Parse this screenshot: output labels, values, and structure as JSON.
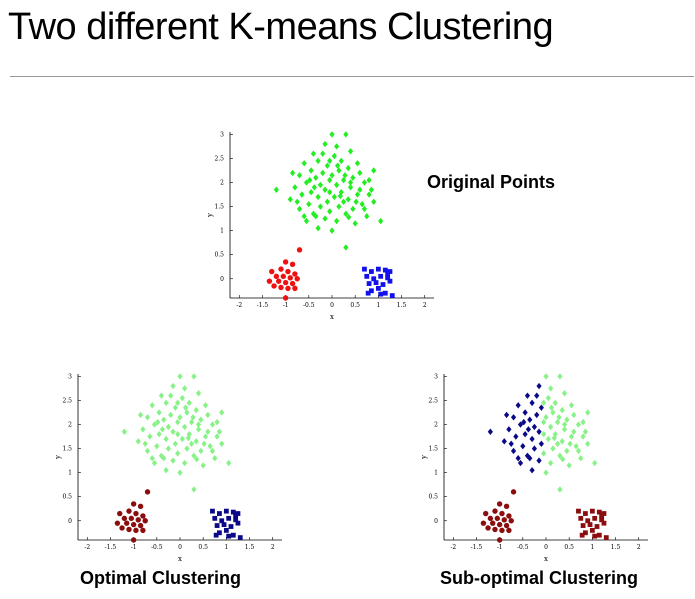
{
  "title": "Two different K-means Clustering",
  "colors": {
    "green": "#22ee22",
    "blue": "#1111ee",
    "red": "#ee1111",
    "light_green": "#88f288",
    "dark_blue": "#0a0a88",
    "dark_red": "#8b0d0d"
  },
  "chart_data": [
    {
      "type": "scatter",
      "caption": "Original Points",
      "xlabel": "x",
      "ylabel": "y",
      "xlim": [
        -2.2,
        2.2
      ],
      "ylim": [
        -0.4,
        3.05
      ],
      "xticks": [
        "-2",
        "-1.5",
        "-1",
        "-0.5",
        "0",
        "0.5",
        "1",
        "1.5",
        "2"
      ],
      "yticks": [
        "0",
        "0.5",
        "1",
        "1.5",
        "2",
        "2.5",
        "3"
      ],
      "grid": false,
      "series": [
        {
          "marker": "diamond",
          "color": "#22ee22",
          "cluster": "A"
        },
        {
          "marker": "square",
          "color": "#1111ee",
          "cluster": "B"
        },
        {
          "marker": "circle",
          "color": "#ee1111",
          "cluster": "C"
        }
      ]
    },
    {
      "type": "scatter",
      "caption": "Optimal Clustering",
      "xlabel": "x",
      "ylabel": "y",
      "xlim": [
        -2.2,
        2.2
      ],
      "ylim": [
        -0.4,
        3.05
      ],
      "xticks": [
        "-2",
        "-1.5",
        "-1",
        "-0.5",
        "0",
        "0.5",
        "1",
        "1.5",
        "2"
      ],
      "yticks": [
        "0",
        "0.5",
        "1",
        "1.5",
        "2",
        "2.5",
        "3"
      ],
      "grid": false,
      "series": [
        {
          "marker": "diamond",
          "color": "#88f288",
          "cluster": "A"
        },
        {
          "marker": "square",
          "color": "#0a0a88",
          "cluster": "B"
        },
        {
          "marker": "circle",
          "color": "#8b0d0d",
          "cluster": "C"
        }
      ]
    },
    {
      "type": "scatter",
      "caption": "Sub-optimal Clustering",
      "xlabel": "x",
      "ylabel": "y",
      "xlim": [
        -2.2,
        2.2
      ],
      "ylim": [
        -0.4,
        3.05
      ],
      "xticks": [
        "-2",
        "-1.5",
        "-1",
        "-0.5",
        "0",
        "0.5",
        "1",
        "1.5",
        "2"
      ],
      "yticks": [
        "0",
        "0.5",
        "1",
        "1.5",
        "2",
        "2.5",
        "3"
      ],
      "grid": false,
      "series": [
        {
          "marker": "diamond",
          "color": "#0a0a88",
          "cluster": "A",
          "x_max": -0.05
        },
        {
          "marker": "diamond",
          "color": "#88f288",
          "cluster": "A",
          "x_min": -0.05
        },
        {
          "marker": "square",
          "color": "#8b0d0d",
          "cluster": "B"
        },
        {
          "marker": "circle",
          "color": "#8b0d0d",
          "cluster": "C"
        }
      ]
    }
  ],
  "points": {
    "A": [
      [
        0.0,
        3.0
      ],
      [
        0.3,
        3.0
      ],
      [
        -0.15,
        2.8
      ],
      [
        0.1,
        2.75
      ],
      [
        -0.4,
        2.6
      ],
      [
        0.4,
        2.65
      ],
      [
        0.05,
        2.55
      ],
      [
        -0.3,
        2.45
      ],
      [
        0.2,
        2.45
      ],
      [
        -0.6,
        2.4
      ],
      [
        0.55,
        2.4
      ],
      [
        -0.1,
        2.35
      ],
      [
        0.35,
        2.3
      ],
      [
        -0.45,
        2.25
      ],
      [
        0.15,
        2.25
      ],
      [
        -0.2,
        2.2
      ],
      [
        0.6,
        2.2
      ],
      [
        -0.7,
        2.15
      ],
      [
        0.0,
        2.15
      ],
      [
        0.45,
        2.1
      ],
      [
        -0.35,
        2.1
      ],
      [
        0.25,
        2.05
      ],
      [
        -0.05,
        2.05
      ],
      [
        -0.55,
        2.0
      ],
      [
        0.7,
        2.0
      ],
      [
        0.1,
        1.95
      ],
      [
        -0.25,
        1.95
      ],
      [
        0.4,
        1.9
      ],
      [
        -0.8,
        1.9
      ],
      [
        0.85,
        1.85
      ],
      [
        -0.15,
        1.85
      ],
      [
        0.2,
        1.8
      ],
      [
        -0.45,
        1.8
      ],
      [
        0.55,
        1.75
      ],
      [
        -0.65,
        1.75
      ],
      [
        0.05,
        1.7
      ],
      [
        -0.3,
        1.7
      ],
      [
        0.35,
        1.65
      ],
      [
        -0.9,
        1.65
      ],
      [
        0.9,
        1.6
      ],
      [
        -0.1,
        1.6
      ],
      [
        0.65,
        1.55
      ],
      [
        -0.5,
        1.55
      ],
      [
        0.15,
        1.5
      ],
      [
        -0.25,
        1.5
      ],
      [
        0.45,
        1.45
      ],
      [
        -0.7,
        1.45
      ],
      [
        -0.05,
        1.4
      ],
      [
        0.3,
        1.35
      ],
      [
        -0.4,
        1.35
      ],
      [
        0.75,
        1.3
      ],
      [
        -0.15,
        1.25
      ],
      [
        0.1,
        1.2
      ],
      [
        -0.55,
        1.2
      ],
      [
        0.5,
        1.15
      ],
      [
        -0.3,
        1.05
      ],
      [
        0.0,
        1.0
      ],
      [
        1.05,
        1.2
      ],
      [
        0.8,
        1.75
      ],
      [
        -1.2,
        1.85
      ],
      [
        -0.35,
        1.3
      ],
      [
        0.25,
        1.6
      ],
      [
        0.6,
        1.85
      ],
      [
        -0.85,
        2.2
      ],
      [
        0.9,
        2.25
      ],
      [
        -0.6,
        1.3
      ],
      [
        0.4,
        2.0
      ],
      [
        -0.2,
        2.6
      ],
      [
        0.12,
        2.35
      ],
      [
        -0.05,
        1.8
      ],
      [
        0.7,
        1.45
      ],
      [
        -0.75,
        1.6
      ],
      [
        0.28,
        2.15
      ],
      [
        -0.38,
        1.9
      ],
      [
        0.52,
        1.6
      ],
      [
        -0.05,
        2.45
      ],
      [
        0.18,
        1.72
      ],
      [
        -0.48,
        2.05
      ],
      [
        0.36,
        1.28
      ],
      [
        0.8,
        2.05
      ],
      [
        0.3,
        0.65
      ]
    ],
    "B": [
      [
        0.7,
        0.2
      ],
      [
        0.85,
        0.15
      ],
      [
        1.0,
        0.2
      ],
      [
        1.15,
        0.18
      ],
      [
        1.25,
        0.15
      ],
      [
        0.75,
        0.05
      ],
      [
        0.9,
        0.0
      ],
      [
        1.05,
        0.05
      ],
      [
        1.2,
        0.02
      ],
      [
        0.8,
        -0.1
      ],
      [
        0.95,
        -0.08
      ],
      [
        1.1,
        -0.12
      ],
      [
        1.25,
        -0.05
      ],
      [
        0.85,
        -0.25
      ],
      [
        1.0,
        -0.2
      ],
      [
        1.15,
        -0.3
      ],
      [
        1.3,
        -0.35
      ],
      [
        0.78,
        -0.3
      ],
      [
        1.05,
        -0.32
      ],
      [
        1.2,
        0.1
      ]
    ],
    "C": [
      [
        -0.7,
        0.6
      ],
      [
        -1.0,
        0.35
      ],
      [
        -0.85,
        0.3
      ],
      [
        -1.3,
        0.15
      ],
      [
        -1.1,
        0.2
      ],
      [
        -0.95,
        0.15
      ],
      [
        -0.8,
        0.1
      ],
      [
        -1.2,
        0.05
      ],
      [
        -1.05,
        0.05
      ],
      [
        -0.9,
        0.02
      ],
      [
        -0.75,
        0.0
      ],
      [
        -1.35,
        -0.05
      ],
      [
        -1.15,
        -0.05
      ],
      [
        -1.0,
        -0.08
      ],
      [
        -0.85,
        -0.1
      ],
      [
        -1.25,
        -0.15
      ],
      [
        -1.1,
        -0.18
      ],
      [
        -0.95,
        -0.2
      ],
      [
        -0.8,
        -0.2
      ],
      [
        -1.0,
        -0.4
      ]
    ]
  }
}
